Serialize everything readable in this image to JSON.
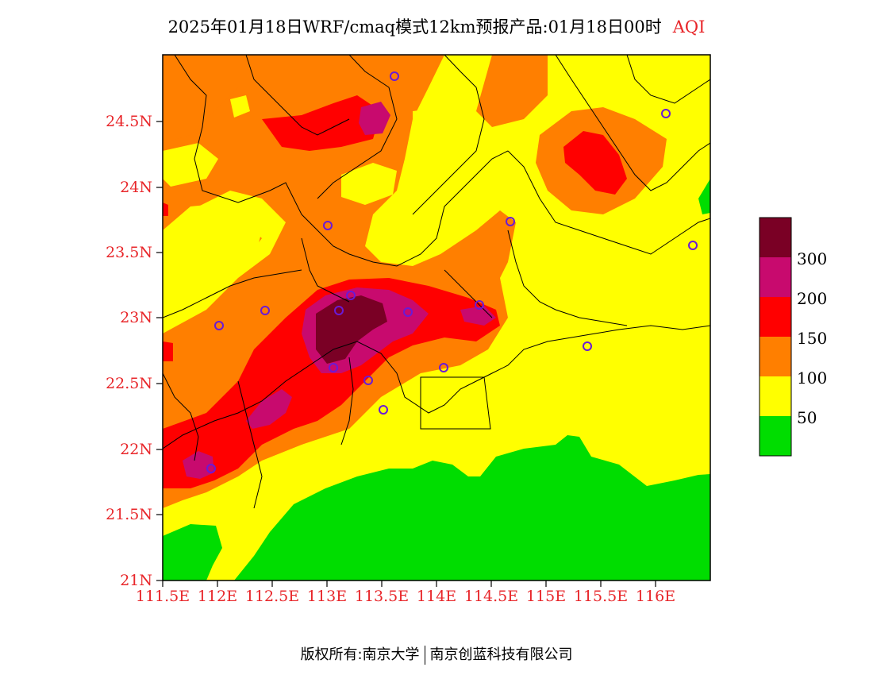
{
  "title": {
    "text": "2025年01月18日WRF/cmaq模式12km预报产品:01月18日00时",
    "variable": "AQI"
  },
  "axes": {
    "y_ticks": [
      "24.5N",
      "24N",
      "23.5N",
      "23N",
      "22.5N",
      "22N",
      "21.5N",
      "21N"
    ],
    "x_ticks": [
      "111.5E",
      "112E",
      "112.5E",
      "113E",
      "113.5E",
      "114E",
      "114.5E",
      "115E",
      "115.5E",
      "116E"
    ]
  },
  "colorbar": {
    "labels": [
      "300",
      "200",
      "150",
      "100",
      "50"
    ],
    "colors": [
      "#7a0025",
      "#c80a6e",
      "#ff0000",
      "#ff7f00",
      "#ffff00",
      "#00dd00"
    ]
  },
  "footer": {
    "left": "版权所有:南京大学",
    "right": "南京创蓝科技有限公司"
  }
}
